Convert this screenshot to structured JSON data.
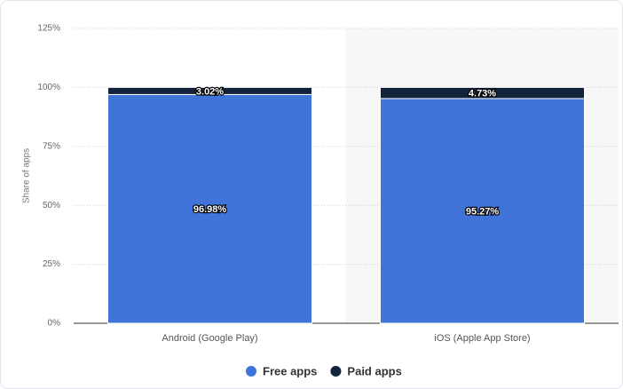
{
  "chart_data": {
    "type": "stacked_bar",
    "y_label": "Share of apps",
    "categories": [
      "Android (Google Play)",
      "iOS (Apple App Store)"
    ],
    "series": [
      {
        "name": "Free apps",
        "color": "#4074d9",
        "values": [
          96.98,
          95.27
        ],
        "value_labels": [
          "96.98%",
          "95.27%"
        ]
      },
      {
        "name": "Paid apps",
        "color": "#14233c",
        "values": [
          3.02,
          4.73
        ],
        "value_labels": [
          "3.02%",
          "4.73%"
        ]
      }
    ],
    "ylim": [
      0,
      125
    ],
    "yticks": [
      {
        "value": 0,
        "label": "0%"
      },
      {
        "value": 25,
        "label": "25%"
      },
      {
        "value": 50,
        "label": "50%"
      },
      {
        "value": 75,
        "label": "75%"
      },
      {
        "value": 100,
        "label": "100%"
      },
      {
        "value": 125,
        "label": "125%"
      }
    ],
    "grid": true,
    "legend": "bottom"
  }
}
